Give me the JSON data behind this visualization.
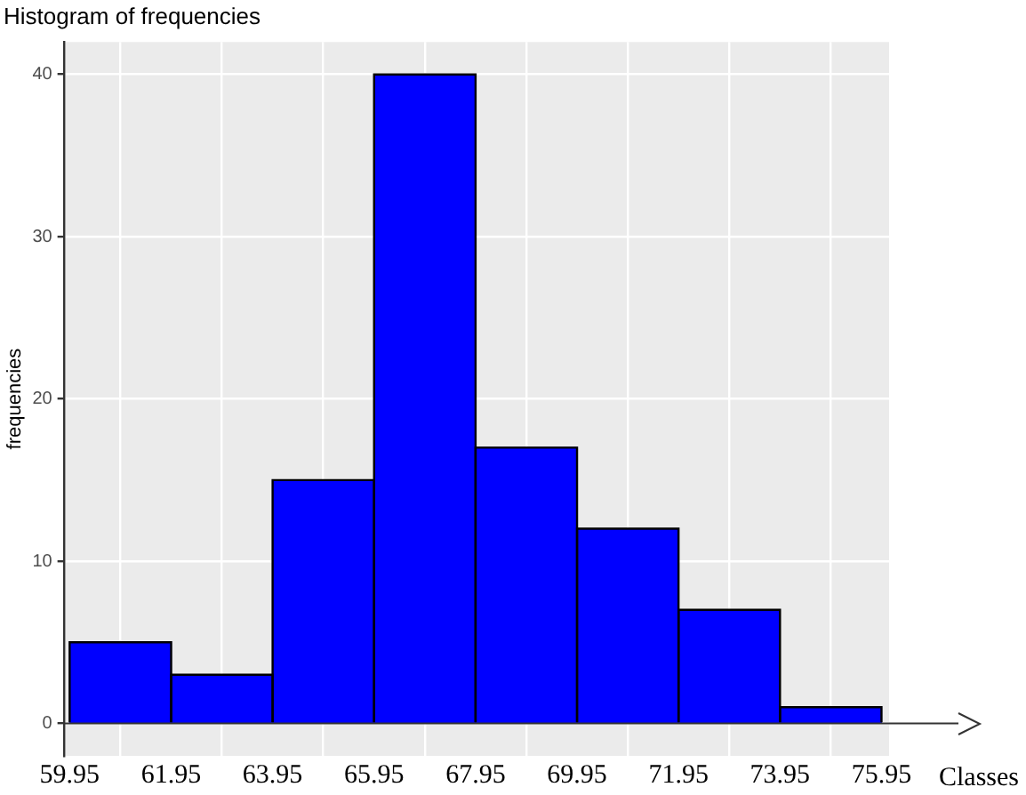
{
  "chart_data": {
    "type": "histogram",
    "title": "Histogram of frequencies",
    "xlabel": "Classes",
    "ylabel": "frequencies",
    "bins": [
      59.95,
      61.95,
      63.95,
      65.95,
      67.95,
      69.95,
      71.95,
      73.95,
      75.95
    ],
    "values": [
      5,
      3,
      15,
      40,
      17,
      12,
      7,
      1
    ],
    "color": "#0000ff",
    "xlim": [
      59.85,
      76.1
    ],
    "ylim": [
      -2,
      42
    ],
    "xticks": [
      59.95,
      61.95,
      63.95,
      65.95,
      67.95,
      69.95,
      71.95,
      73.95,
      75.95
    ],
    "yticks": [
      0,
      10,
      20,
      30,
      40
    ],
    "grid": true
  }
}
